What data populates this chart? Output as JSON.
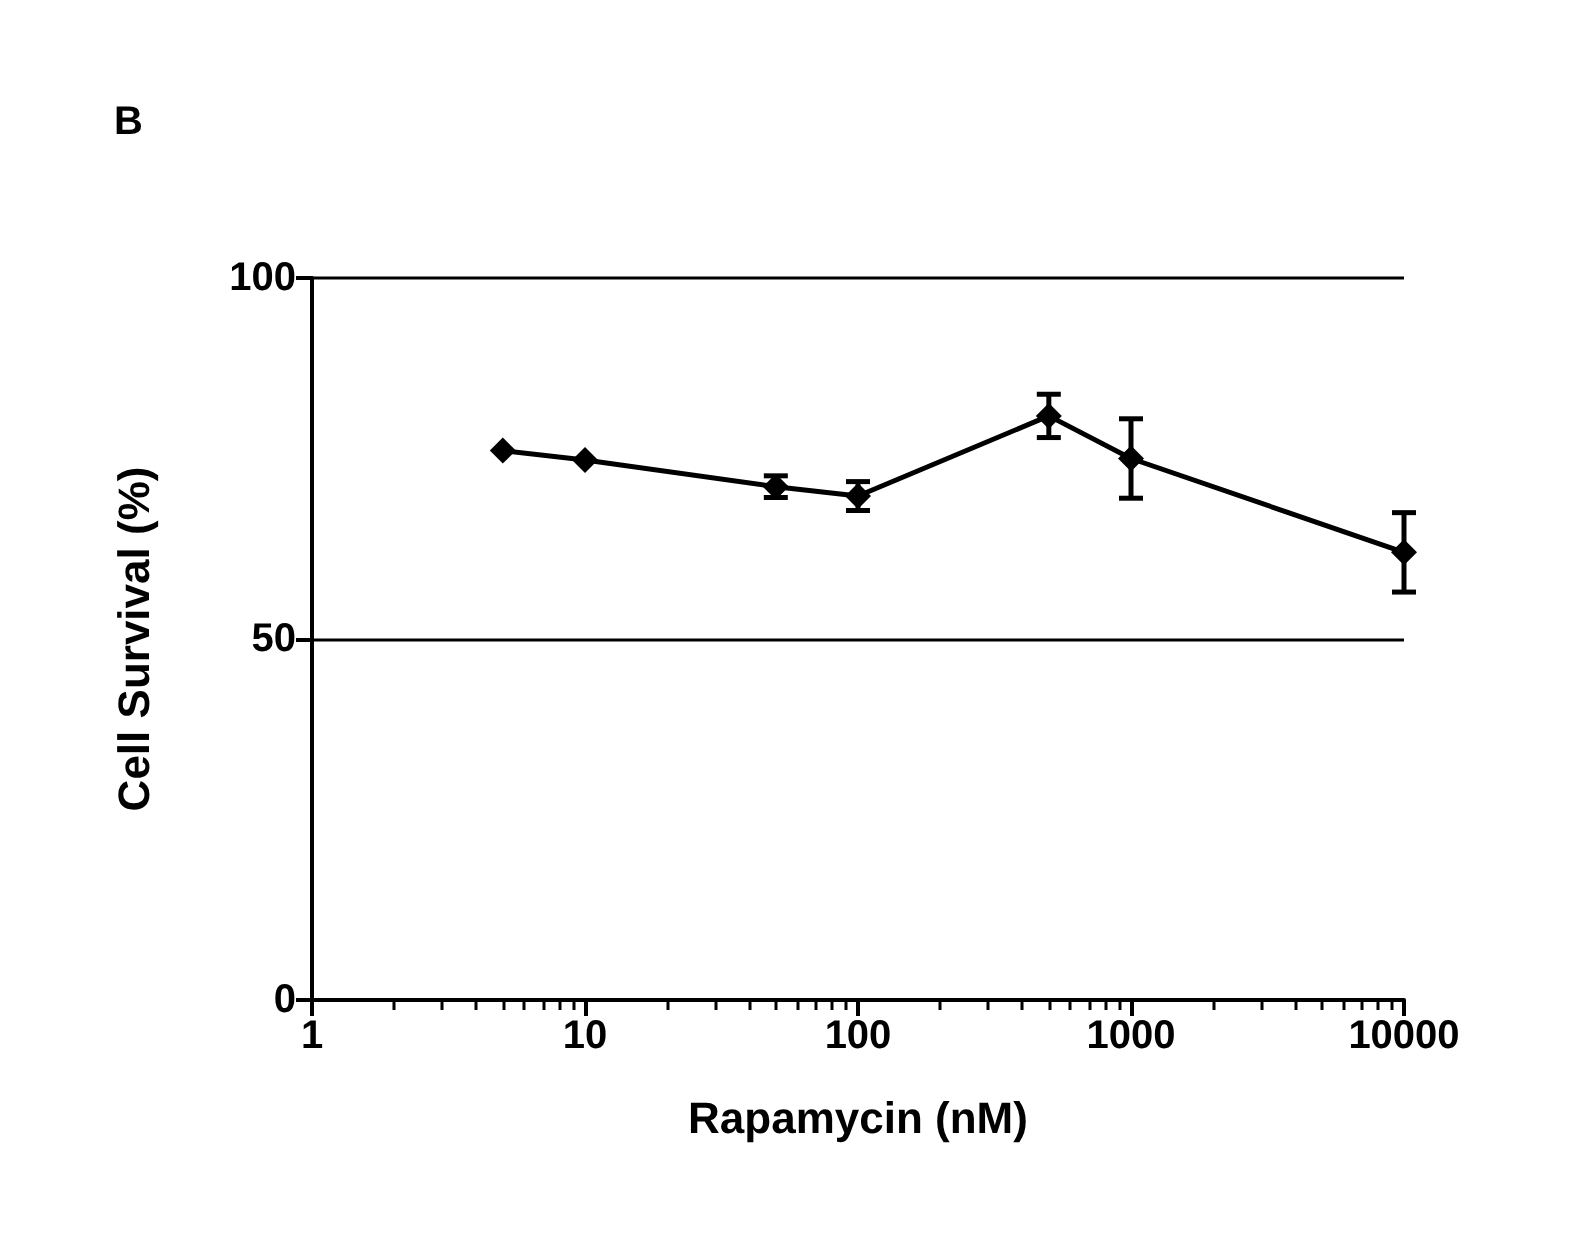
{
  "chart_data": {
    "type": "line",
    "title": "B",
    "xlabel": "Rapamycin (nM)",
    "ylabel": "Cell Survival (%)",
    "x": [
      5,
      10,
      50,
      100,
      500,
      1000,
      10000
    ],
    "series": [
      {
        "color": "#000000",
        "values": [
          76.1,
          74.8,
          71.1,
          69.8,
          80.9,
          75,
          62
        ],
        "errors": [
          null,
          null,
          1.5,
          2,
          3,
          5.5,
          5.5
        ]
      }
    ],
    "log": "x",
    "xlim": [
      1,
      10000
    ],
    "xticks": [
      1,
      10,
      100,
      1000,
      10000
    ],
    "ylim": [
      0,
      100
    ],
    "yticks": [
      0,
      50,
      100
    ],
    "grid": "y",
    "marker": "diamond",
    "line_style": "solid"
  }
}
